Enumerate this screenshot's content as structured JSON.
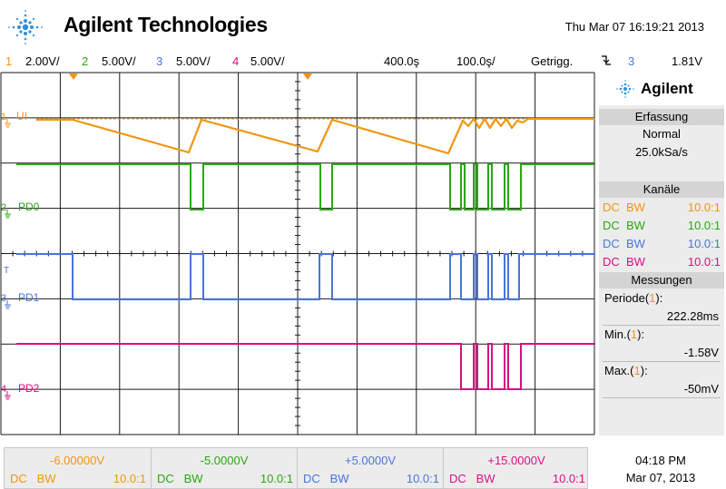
{
  "header": {
    "brand": "Agilent Technologies",
    "datetime": "Thu Mar 07 16:19:21 2013",
    "logo_icon": "agilent-spark-icon",
    "logo_color": "#2f8fd8"
  },
  "channel_bar": {
    "ch1_num": "1",
    "ch1_scale": "2.00V/",
    "ch2_num": "2",
    "ch2_scale": "5.00V/",
    "ch3_num": "3",
    "ch3_scale": "5.00V/",
    "ch4_num": "4",
    "ch4_scale": "5.00V/",
    "time_delay": "400.0ş",
    "time_scale": "100.0ş/",
    "trigger_mode": "Getrigg.",
    "trigger_icon": "falling-edge-trigger-icon",
    "trigger_channel": "3",
    "trigger_level": "1.81V"
  },
  "colors": {
    "ch1": "#f0960f",
    "ch2": "#2aa70f",
    "ch3": "#4a74d8",
    "ch4": "#d90f80",
    "grid": "#1a1a1a",
    "panel": "#ececec"
  },
  "screen": {
    "labels": {
      "ch1": "UI",
      "ch2": "PD0",
      "ch3": "PD1",
      "ch4": "PD2"
    },
    "markers": {
      "ch1": "1",
      "ch2": "2",
      "ch3": "3",
      "ch4": "4",
      "trigger_T": "T"
    }
  },
  "panel": {
    "brand": "Agilent",
    "acquisition_title": "Erfassung",
    "acquisition_mode": "Normal",
    "sample_rate": "25.0kSa/s",
    "channels_title": "Kanäle",
    "channels": [
      {
        "coupling": "DC",
        "bw": "BW",
        "probe": "10.0:1"
      },
      {
        "coupling": "DC",
        "bw": "BW",
        "probe": "10.0:1"
      },
      {
        "coupling": "DC",
        "bw": "BW",
        "probe": "10.0:1"
      },
      {
        "coupling": "DC",
        "bw": "BW",
        "probe": "10.0:1"
      }
    ],
    "measurements_title": "Messungen",
    "measurements": [
      {
        "name": "Periode",
        "source": "1",
        "value": "222.28ms"
      },
      {
        "name": "Min.",
        "source": "1",
        "value": "-1.58V"
      },
      {
        "name": "Max.",
        "source": "1",
        "value": "-50mV"
      }
    ]
  },
  "bottom_bar": [
    {
      "offset": "-6.00000V",
      "coupling": "DC",
      "bw": "BW",
      "probe": "10.0:1"
    },
    {
      "offset": "-5.0000V",
      "coupling": "DC",
      "bw": "BW",
      "probe": "10.0:1"
    },
    {
      "offset": "+5.0000V",
      "coupling": "DC",
      "bw": "BW",
      "probe": "10.0:1"
    },
    {
      "offset": "+15.0000V",
      "coupling": "DC",
      "bw": "BW",
      "probe": "10.0:1"
    }
  ],
  "clock": {
    "time": "04:18 PM",
    "date": "Mar 07, 2013"
  }
}
